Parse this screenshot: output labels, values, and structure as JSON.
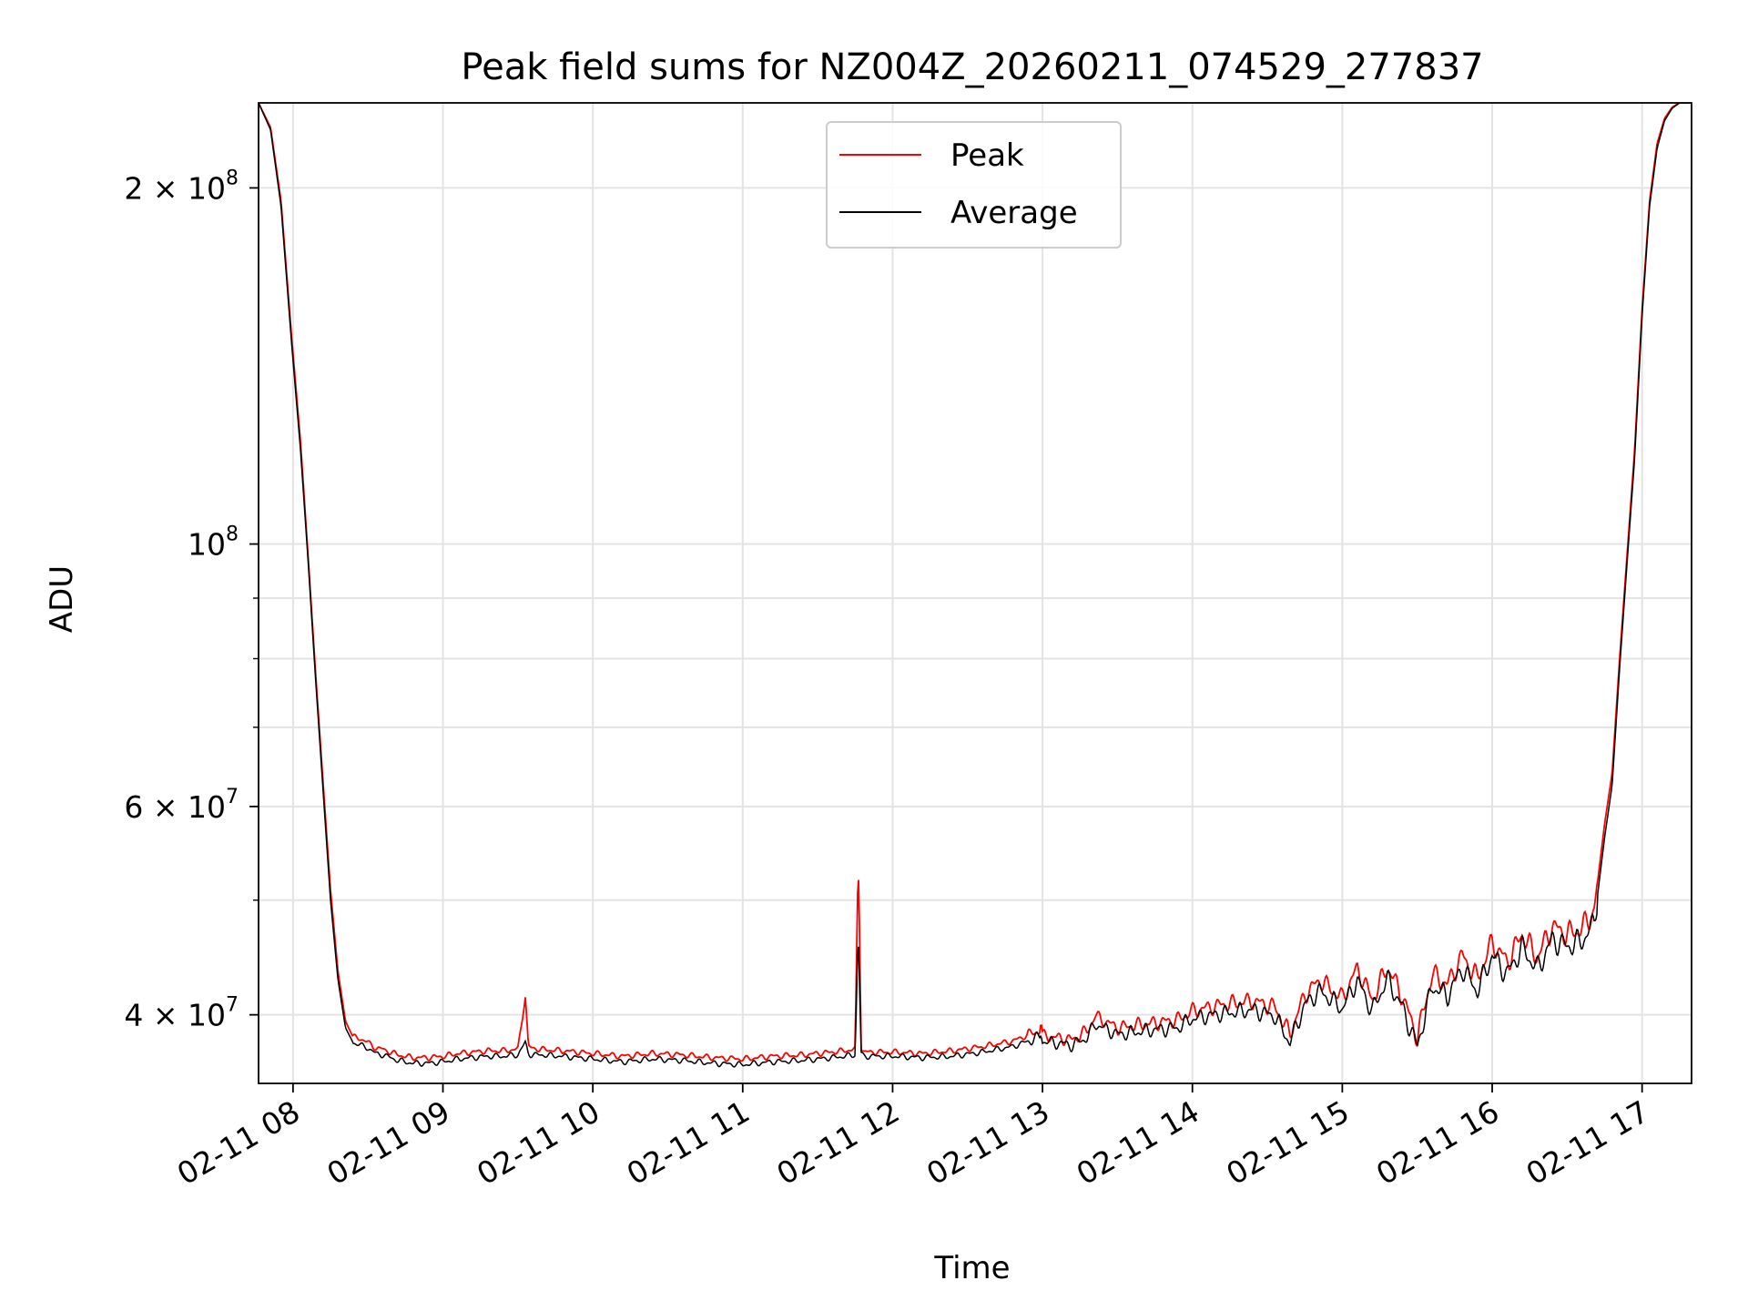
{
  "chart_data": {
    "type": "line",
    "title": "Peak field sums for NZ004Z_20260211_074529_277837",
    "xlabel": "Time",
    "ylabel": "ADU",
    "yscale": "log",
    "grid": true,
    "legend_location": "upper-center",
    "xlim_hours": [
      7.77,
      17.33
    ],
    "ylim": [
      35000000,
      236000000
    ],
    "x_ticks": [
      {
        "hour": 8,
        "label": "02-11 08"
      },
      {
        "hour": 9,
        "label": "02-11 09"
      },
      {
        "hour": 10,
        "label": "02-11 10"
      },
      {
        "hour": 11,
        "label": "02-11 11"
      },
      {
        "hour": 12,
        "label": "02-11 12"
      },
      {
        "hour": 13,
        "label": "02-11 13"
      },
      {
        "hour": 14,
        "label": "02-11 14"
      },
      {
        "hour": 15,
        "label": "02-11 15"
      },
      {
        "hour": 16,
        "label": "02-11 16"
      },
      {
        "hour": 17,
        "label": "02-11 17"
      }
    ],
    "y_major_ticks": [
      {
        "value": 40000000,
        "mantissa": "4",
        "exponent": "7"
      },
      {
        "value": 60000000,
        "mantissa": "6",
        "exponent": "7"
      },
      {
        "value": 100000000,
        "mantissa": "",
        "exponent": "8"
      },
      {
        "value": 200000000,
        "mantissa": "2",
        "exponent": "8"
      }
    ],
    "y_minor_ticks": [
      50000000,
      70000000,
      80000000,
      90000000
    ],
    "tick_label_times": "×",
    "tick_label_base": "10",
    "legend": [
      {
        "name": "Peak",
        "color": "#ff0000"
      },
      {
        "name": "Average",
        "color": "#000000"
      }
    ],
    "series": [
      {
        "name": "Peak",
        "color": "#ff0000",
        "x_hours": [
          7.77,
          7.85,
          7.92,
          7.99,
          8.05,
          8.1,
          8.15,
          8.2,
          8.25,
          8.3,
          8.35,
          8.4,
          8.45,
          8.5,
          8.55,
          8.6,
          8.7,
          8.8,
          8.9,
          9.0,
          9.1,
          9.2,
          9.3,
          9.4,
          9.5,
          9.55,
          9.57,
          9.59,
          9.65,
          9.8,
          10.0,
          10.2,
          10.4,
          10.6,
          10.8,
          11.0,
          11.2,
          11.4,
          11.6,
          11.75,
          11.77,
          11.78,
          11.79,
          11.81,
          12.0,
          12.2,
          12.4,
          12.6,
          12.8,
          12.98,
          12.99,
          13.0,
          13.2,
          13.3,
          13.35,
          13.5,
          13.7,
          13.9,
          14.0,
          14.2,
          14.4,
          14.55,
          14.65,
          14.75,
          14.85,
          15.0,
          15.1,
          15.2,
          15.3,
          15.4,
          15.5,
          15.6,
          15.7,
          15.8,
          15.9,
          16.0,
          16.1,
          16.2,
          16.3,
          16.4,
          16.5,
          16.6,
          16.68,
          16.75,
          16.8,
          16.85,
          16.9,
          16.95,
          17.0,
          17.05,
          17.1,
          17.15,
          17.2,
          17.25,
          17.33
        ],
        "values": [
          236000000,
          225000000,
          195000000,
          150000000,
          122000000,
          98000000,
          78000000,
          63000000,
          51000000,
          43500000,
          39500000,
          38300000,
          38200000,
          37900000,
          37500000,
          37400000,
          37000000,
          36800000,
          36800000,
          36900000,
          37100000,
          37200000,
          37300000,
          37300000,
          37400000,
          41500000,
          37600000,
          37500000,
          37400000,
          37300000,
          37100000,
          36900000,
          37100000,
          37000000,
          36800000,
          36700000,
          36900000,
          37000000,
          37200000,
          37400000,
          54000000,
          47000000,
          37500000,
          37200000,
          37200000,
          37100000,
          37300000,
          37600000,
          38000000,
          38800000,
          39500000,
          38400000,
          38100000,
          38800000,
          39900000,
          39000000,
          39300000,
          39600000,
          40300000,
          40800000,
          41100000,
          40600000,
          38500000,
          41600000,
          42800000,
          41300000,
          43800000,
          41200000,
          43900000,
          41500000,
          38300000,
          43300000,
          42400000,
          44900000,
          42900000,
          46100000,
          44300000,
          46800000,
          44700000,
          47500000,
          46800000,
          47300000,
          49000000,
          58000000,
          64000000,
          80000000,
          98000000,
          120000000,
          158000000,
          195000000,
          218000000,
          229000000,
          234000000,
          236000000,
          236000000
        ]
      },
      {
        "name": "Average",
        "color": "#000000",
        "x_hours": [
          7.77,
          7.85,
          7.92,
          7.99,
          8.05,
          8.1,
          8.15,
          8.2,
          8.25,
          8.3,
          8.35,
          8.4,
          8.45,
          8.5,
          8.55,
          8.6,
          8.7,
          8.8,
          8.9,
          9.0,
          9.1,
          9.2,
          9.3,
          9.4,
          9.5,
          9.55,
          9.57,
          9.59,
          9.65,
          9.8,
          10.0,
          10.2,
          10.4,
          10.6,
          10.8,
          11.0,
          11.2,
          11.4,
          11.6,
          11.75,
          11.77,
          11.78,
          11.79,
          11.81,
          12.0,
          12.2,
          12.4,
          12.6,
          12.8,
          12.98,
          12.99,
          13.0,
          13.2,
          13.3,
          13.35,
          13.5,
          13.7,
          13.9,
          14.0,
          14.2,
          14.4,
          14.55,
          14.65,
          14.75,
          14.85,
          15.0,
          15.1,
          15.2,
          15.3,
          15.4,
          15.5,
          15.6,
          15.7,
          15.8,
          15.9,
          16.0,
          16.1,
          16.2,
          16.3,
          16.4,
          16.5,
          16.6,
          16.68,
          16.75,
          16.8,
          16.85,
          16.9,
          16.95,
          17.0,
          17.05,
          17.1,
          17.15,
          17.2,
          17.25,
          17.33
        ],
        "values": [
          236000000,
          224000000,
          193000000,
          148000000,
          120000000,
          97000000,
          77000000,
          62000000,
          50000000,
          42800000,
          39000000,
          37900000,
          37700000,
          37500000,
          37100000,
          37000000,
          36600000,
          36400000,
          36400000,
          36500000,
          36700000,
          36800000,
          36900000,
          36900000,
          37000000,
          37900000,
          37100000,
          37000000,
          37000000,
          36900000,
          36700000,
          36500000,
          36700000,
          36600000,
          36400000,
          36300000,
          36500000,
          36600000,
          36800000,
          37000000,
          47000000,
          42000000,
          37100000,
          36900000,
          36900000,
          36800000,
          36900000,
          37200000,
          37600000,
          38300000,
          38700000,
          38000000,
          37700000,
          38300000,
          39300000,
          38500000,
          38800000,
          39000000,
          39700000,
          40100000,
          40400000,
          39900000,
          37900000,
          40800000,
          41900000,
          40500000,
          42800000,
          40300000,
          42900000,
          40600000,
          37600000,
          42300000,
          41500000,
          43800000,
          41900000,
          44900000,
          43300000,
          45600000,
          43700000,
          46300000,
          45700000,
          46200000,
          47800000,
          56500000,
          62500000,
          78500000,
          96500000,
          118000000,
          156000000,
          193000000,
          216000000,
          228000000,
          233500000,
          236000000,
          236000000
        ]
      }
    ]
  }
}
